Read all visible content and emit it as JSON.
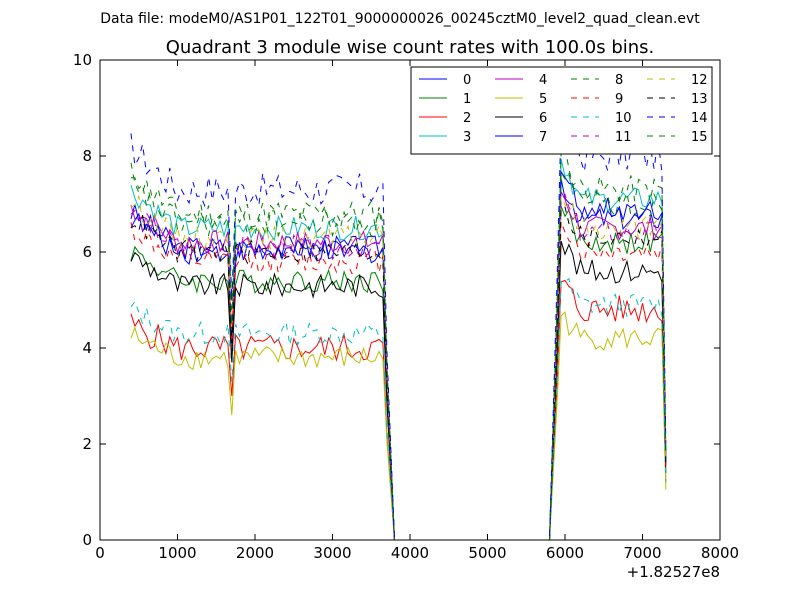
{
  "figure": {
    "suptitle": "Data file: modeM0/AS1P01_122T01_9000000026_00245cztM0_level2_quad_clean.evt",
    "title": "Quadrant 3 module wise count rates with 100.0s bins.",
    "x_offset_label": "+1.82527e8"
  },
  "chart_data": {
    "type": "line",
    "title": "Quadrant 3 module wise count rates with 100.0s bins.",
    "xlim": [
      0,
      8000
    ],
    "ylim": [
      0,
      10
    ],
    "x_offset": 182527000,
    "xticks": [
      0,
      1000,
      2000,
      3000,
      4000,
      5000,
      6000,
      7000,
      8000
    ],
    "yticks": [
      0,
      2,
      4,
      6,
      8,
      10
    ],
    "grid": false,
    "legend_position": "top-right",
    "bins": {
      "seg1_start": 400,
      "seg1_end": 3700,
      "gap_start": 3800,
      "gap_end": 5800,
      "seg2_start": 5900,
      "seg2_end": 7300,
      "step": 50
    },
    "series": [
      {
        "name": "0",
        "color": "#0000ff",
        "style": "solid",
        "base1": 6.1,
        "dip": 4.0,
        "level2": 6.7,
        "amp": 0.25
      },
      {
        "name": "1",
        "color": "#008000",
        "style": "solid",
        "base1": 5.4,
        "dip": 3.8,
        "level2": 6.2,
        "amp": 0.25
      },
      {
        "name": "2",
        "color": "#ff0000",
        "style": "solid",
        "base1": 4.0,
        "dip": 3.0,
        "level2": 4.8,
        "amp": 0.3
      },
      {
        "name": "3",
        "color": "#00bfbf",
        "style": "solid",
        "base1": 6.5,
        "dip": 4.0,
        "level2": 7.1,
        "amp": 0.25
      },
      {
        "name": "4",
        "color": "#bf00bf",
        "style": "solid",
        "base1": 6.2,
        "dip": 4.2,
        "level2": 6.5,
        "amp": 0.25
      },
      {
        "name": "5",
        "color": "#bfbf00",
        "style": "solid",
        "base1": 3.8,
        "dip": 2.6,
        "level2": 4.2,
        "amp": 0.25
      },
      {
        "name": "6",
        "color": "#000000",
        "style": "solid",
        "base1": 5.3,
        "dip": 3.7,
        "level2": 5.6,
        "amp": 0.25
      },
      {
        "name": "7",
        "color": "#0000ff",
        "style": "solid",
        "base1": 6.0,
        "dip": 4.1,
        "level2": 6.9,
        "amp": 0.25
      },
      {
        "name": "8",
        "color": "#008000",
        "style": "dashed",
        "base1": 6.8,
        "dip": 4.8,
        "level2": 7.3,
        "amp": 0.3
      },
      {
        "name": "9",
        "color": "#ff0000",
        "style": "dashed",
        "base1": 5.8,
        "dip": 4.0,
        "level2": 6.0,
        "amp": 0.25
      },
      {
        "name": "10",
        "color": "#00bfbf",
        "style": "dashed",
        "base1": 4.3,
        "dip": 3.3,
        "level2": 4.9,
        "amp": 0.25
      },
      {
        "name": "11",
        "color": "#bf00bf",
        "style": "dashed",
        "base1": 6.1,
        "dip": 4.2,
        "level2": 6.4,
        "amp": 0.25
      },
      {
        "name": "12",
        "color": "#bfbf00",
        "style": "dashed",
        "base1": 6.3,
        "dip": 4.3,
        "level2": 6.5,
        "amp": 0.25
      },
      {
        "name": "13",
        "color": "#000000",
        "style": "dashed",
        "base1": 6.0,
        "dip": 4.1,
        "level2": 6.3,
        "amp": 0.25
      },
      {
        "name": "14",
        "color": "#0000ff",
        "style": "dashed",
        "base1": 7.3,
        "dip": 5.0,
        "level2": 8.0,
        "amp": 0.35
      },
      {
        "name": "15",
        "color": "#008000",
        "style": "dashed",
        "base1": 6.6,
        "dip": 4.5,
        "level2": 7.0,
        "amp": 0.3
      }
    ]
  }
}
